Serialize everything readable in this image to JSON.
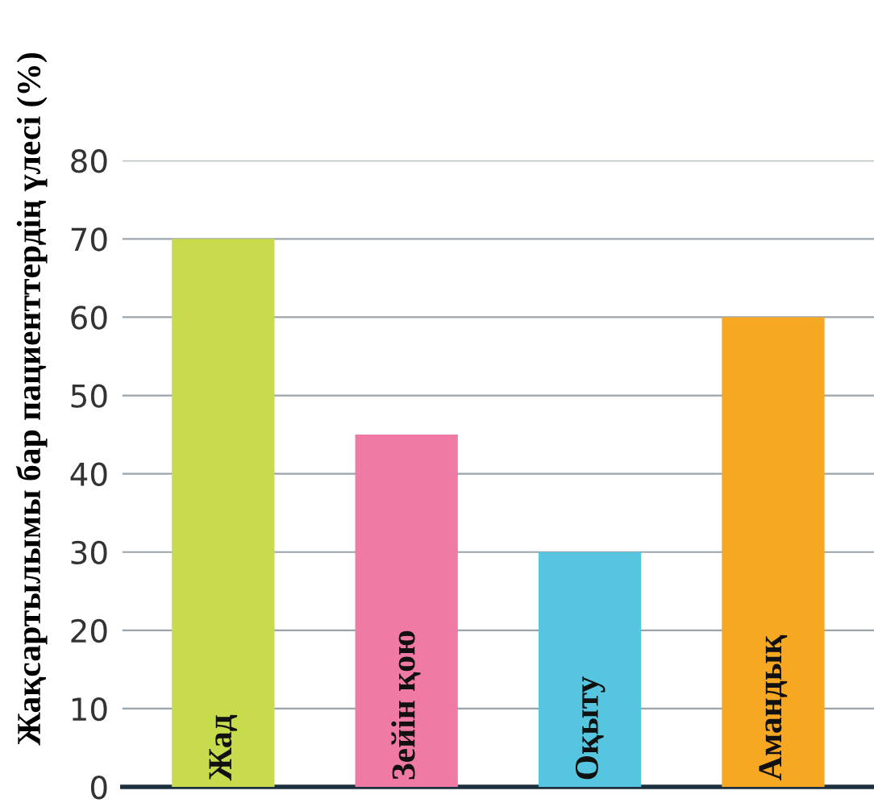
{
  "chart_data": {
    "type": "bar",
    "ylabel": "Жақсартылымы бар пациенттердің үлесі (%)",
    "categories": [
      "Жад",
      "Зейін қою",
      "Оқыту",
      "Амандық"
    ],
    "values": [
      70,
      45,
      30,
      60
    ],
    "colors": [
      "#c8db4c",
      "#ef7aa3",
      "#55c5e0",
      "#f7a823"
    ],
    "ylim": [
      0,
      80
    ],
    "yticks": [
      0,
      10,
      20,
      30,
      40,
      50,
      60,
      70,
      80
    ],
    "grid": "y"
  }
}
